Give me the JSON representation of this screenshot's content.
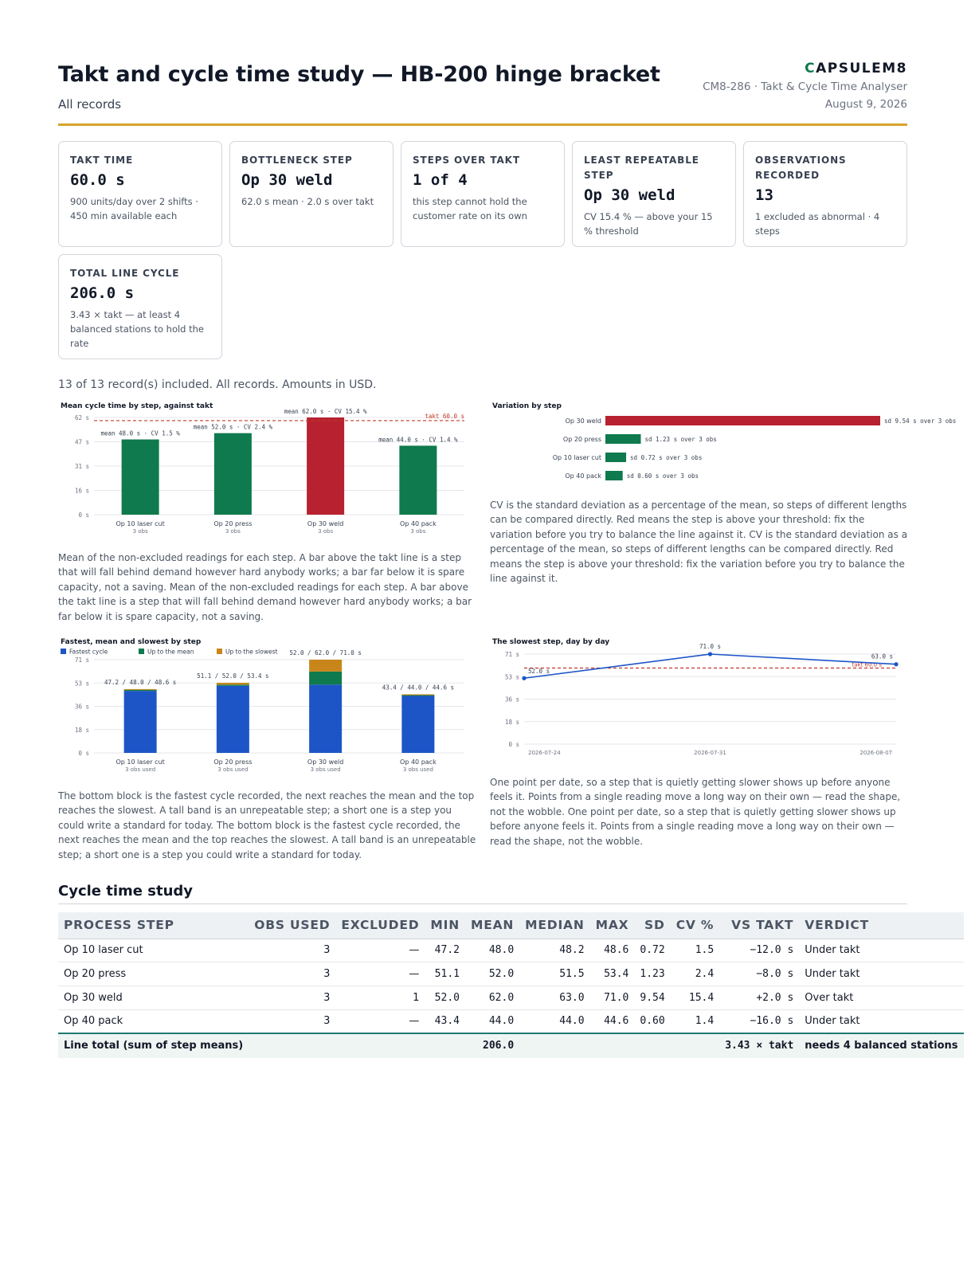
{
  "header": {
    "title": "Takt and cycle time study — HB-200 hinge bracket",
    "subtitle": "All records",
    "brand": "CAPSULEM8",
    "brand_initial": "C",
    "brand_rest": "APSULEM8",
    "doc_ref": "CM8-286 · Takt & Cycle Time Analyser",
    "date": "August 9, 2026"
  },
  "cards": [
    {
      "label": "TAKT TIME",
      "value": "60.0 s",
      "note": "900 units/day over 2 shifts · 450 min available each"
    },
    {
      "label": "BOTTLENECK STEP",
      "value": "Op 30 weld",
      "note": "62.0 s mean · 2.0 s over takt"
    },
    {
      "label": "STEPS OVER TAKT",
      "value": "1 of 4",
      "note": "this step cannot hold the customer rate on its own"
    },
    {
      "label": "LEAST REPEATABLE STEP",
      "value": "Op 30 weld",
      "note": "CV 15.4 % — above your 15 % threshold"
    },
    {
      "label": "OBSERVATIONS RECORDED",
      "value": "13",
      "note": "1 excluded as abnormal · 4 steps"
    },
    {
      "label": "TOTAL LINE CYCLE",
      "value": "206.0 s",
      "note": "3.43 × takt — at least 4 balanced stations to hold the rate"
    }
  ],
  "summary": "13 of 13 record(s) included. All records. Amounts in USD.",
  "colors": {
    "under": "#0f7a4d",
    "over": "#b8212f",
    "fastest": "#1d55c7",
    "to_mean": "#0f7a4d",
    "to_slowest": "#c8861a",
    "takt_line": "#c0392b",
    "trend": "#1d55c7"
  },
  "paragraphs": {
    "mean_chart": "Mean of the non-excluded readings for each step. A bar above the takt line is a step that will fall behind demand however hard anybody works; a bar far below it is spare capacity, not a saving. Mean of the non-excluded readings for each step. A bar above the takt line is a step that will fall behind demand however hard anybody works; a bar far below it is spare capacity, not a saving.",
    "variation_chart": "CV is the standard deviation as a percentage of the mean, so steps of different lengths can be compared directly. Red means the step is above your threshold: fix the variation before you try to balance the line against it. CV is the standard deviation as a percentage of the mean, so steps of different lengths can be compared directly. Red means the step is above your threshold: fix the variation before you try to balance the line against it.",
    "range_chart": "The bottom block is the fastest cycle recorded, the next reaches the mean and the top reaches the slowest. A tall band is an unrepeatable step; a short one is a step you could write a standard for today. The bottom block is the fastest cycle recorded, the next reaches the mean and the top reaches the slowest. A tall band is an unrepeatable step; a short one is a step you could write a standard for today.",
    "trend_chart": "One point per date, so a step that is quietly getting slower shows up before anyone feels it. Points from a single reading move a long way on their own — read the shape, not the wobble. One point per date, so a step that is quietly getting slower shows up before anyone feels it. Points from a single reading move a long way on their own — read the shape, not the wobble."
  },
  "chart_data": [
    {
      "type": "bar",
      "title": "Mean cycle time by step, against takt",
      "categories": [
        "Op 10 laser cut",
        "Op 20 press",
        "Op 30 weld",
        "Op 40 pack"
      ],
      "sublabels": [
        "3 obs",
        "3 obs",
        "3 obs",
        "3 obs"
      ],
      "values": [
        48.0,
        52.0,
        62.0,
        44.0
      ],
      "data_labels": [
        "mean 48.0 s · CV 1.5 %",
        "mean 52.0 s · CV 2.4 %",
        "mean 62.0 s · CV 15.4 %",
        "mean 44.0 s · CV 1.4 %"
      ],
      "over_takt": [
        false,
        false,
        true,
        false
      ],
      "takt": 60.0,
      "takt_label": "takt 60.0 s",
      "yticks": [
        "0 s",
        "16 s",
        "31 s",
        "47 s",
        "62 s"
      ],
      "ylim": [
        0,
        62
      ]
    },
    {
      "type": "bar",
      "orientation": "horizontal",
      "title": "Variation by step",
      "categories": [
        "Op 30 weld",
        "Op 20 press",
        "Op 10 laser cut",
        "Op 40 pack"
      ],
      "values": [
        9.54,
        1.23,
        0.72,
        0.6
      ],
      "data_labels": [
        "sd 9.54 s over 3 obs",
        "sd 1.23 s over 3 obs",
        "sd 0.72 s over 3 obs",
        "sd 0.60 s over 3 obs"
      ],
      "over_threshold": [
        true,
        false,
        false,
        false
      ]
    },
    {
      "type": "bar",
      "stacked": true,
      "title": "Fastest, mean and slowest by step",
      "legend": [
        "Fastest cycle",
        "Up to the mean",
        "Up to the slowest"
      ],
      "legend_position": "top-left",
      "categories": [
        "Op 10 laser cut",
        "Op 20 press",
        "Op 30 weld",
        "Op 40 pack"
      ],
      "sublabels": [
        "3 obs used",
        "3 obs used",
        "3 obs used",
        "3 obs used"
      ],
      "min": [
        47.2,
        51.1,
        52.0,
        43.4
      ],
      "mean": [
        48.0,
        52.0,
        62.0,
        44.0
      ],
      "max": [
        48.6,
        53.4,
        71.0,
        44.6
      ],
      "data_labels": [
        "47.2 / 48.0 / 48.6 s",
        "51.1 / 52.0 / 53.4 s",
        "52.0 / 62.0 / 71.0 s",
        "43.4 / 44.0 / 44.6 s"
      ],
      "yticks": [
        "0 s",
        "18 s",
        "36 s",
        "53 s",
        "71 s"
      ],
      "ylim": [
        0,
        71
      ]
    },
    {
      "type": "line",
      "title": "The slowest step, day by day",
      "x": [
        "2026-07-24",
        "2026-07-31",
        "2026-08-07"
      ],
      "y": [
        52.0,
        71.0,
        63.0
      ],
      "point_labels": [
        "52.0 s",
        "71.0 s",
        "63.0 s"
      ],
      "takt": 60.0,
      "takt_label": "takt 60.0 s",
      "yticks": [
        "0 s",
        "18 s",
        "36 s",
        "53 s",
        "71 s"
      ],
      "ylim": [
        0,
        71
      ]
    }
  ],
  "table": {
    "section_title": "Cycle time study",
    "headers": [
      "PROCESS STEP",
      "OBS USED",
      "EXCLUDED",
      "MIN",
      "MEAN",
      "MEDIAN",
      "MAX",
      "SD",
      "CV %",
      "VS TAKT",
      "VERDICT"
    ],
    "rows": [
      {
        "step": "Op 10 laser cut",
        "obs": "3",
        "excl": "—",
        "min": "47.2",
        "mean": "48.0",
        "median": "48.2",
        "max": "48.6",
        "sd": "0.72",
        "cv": "1.5",
        "vs": "−12.0 s",
        "verdict": "Under takt"
      },
      {
        "step": "Op 20 press",
        "obs": "3",
        "excl": "—",
        "min": "51.1",
        "mean": "52.0",
        "median": "51.5",
        "max": "53.4",
        "sd": "1.23",
        "cv": "2.4",
        "vs": "−8.0 s",
        "verdict": "Under takt"
      },
      {
        "step": "Op 30 weld",
        "obs": "3",
        "excl": "1",
        "min": "52.0",
        "mean": "62.0",
        "median": "63.0",
        "max": "71.0",
        "sd": "9.54",
        "cv": "15.4",
        "vs": "+2.0 s",
        "verdict": "Over takt"
      },
      {
        "step": "Op 40 pack",
        "obs": "3",
        "excl": "—",
        "min": "43.4",
        "mean": "44.0",
        "median": "44.0",
        "max": "44.6",
        "sd": "0.60",
        "cv": "1.4",
        "vs": "−16.0 s",
        "verdict": "Under takt"
      }
    ],
    "total": {
      "label": "Line total (sum of step means)",
      "mean": "206.0",
      "vs": "3.43 × takt",
      "verdict": "needs 4 balanced stations"
    }
  }
}
